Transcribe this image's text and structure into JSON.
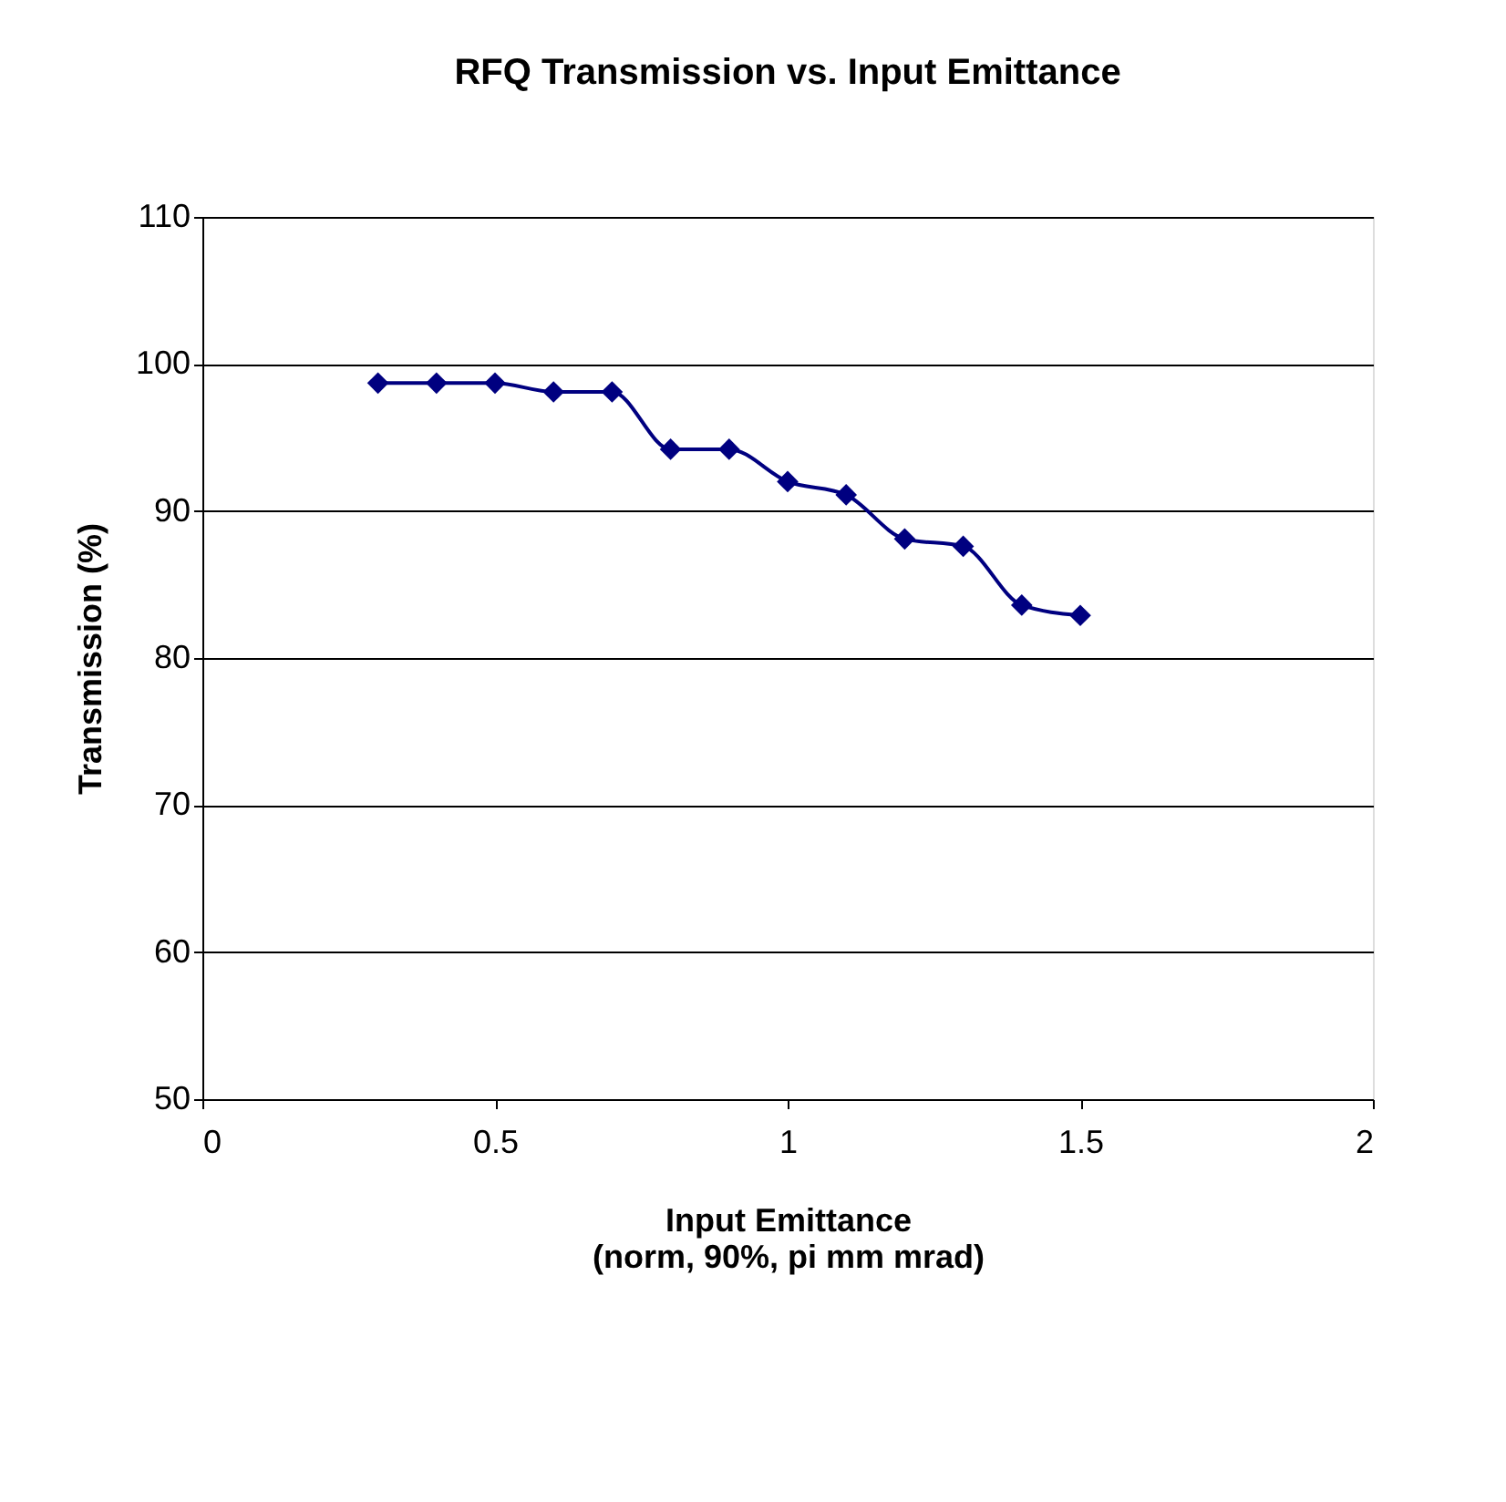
{
  "chart_data": {
    "type": "line",
    "title": "RFQ Transmission vs. Input Emittance",
    "xlabel": "Input Emittance\n(norm, 90%, pi mm mrad)",
    "ylabel": "Transmission (%)",
    "x": [
      0.3,
      0.4,
      0.5,
      0.6,
      0.7,
      0.8,
      0.9,
      1.0,
      1.1,
      1.2,
      1.3,
      1.4,
      1.5
    ],
    "series": [
      {
        "color": "#000080",
        "values": [
          98.7,
          98.7,
          98.7,
          98.1,
          98.1,
          94.2,
          94.2,
          92.0,
          91.1,
          88.1,
          87.6,
          83.6,
          82.9
        ]
      }
    ],
    "xlim": [
      0,
      2
    ],
    "xticks": [
      0,
      0.5,
      1,
      1.5,
      2
    ],
    "ylim": [
      50,
      110
    ],
    "yticks": [
      50,
      60,
      70,
      80,
      90,
      100,
      110
    ],
    "grid": "y",
    "legend": false,
    "marker": "diamond",
    "line_style": "solid"
  }
}
